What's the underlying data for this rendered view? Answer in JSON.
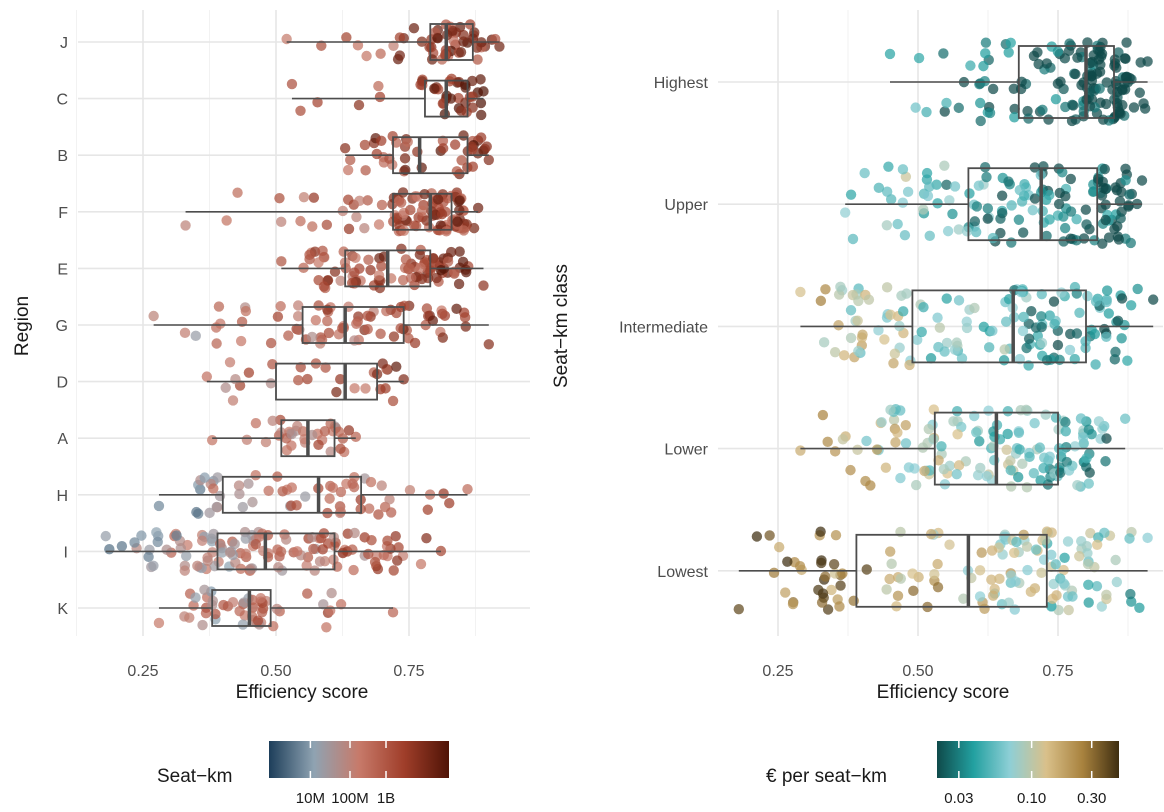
{
  "chart_data": [
    {
      "type": "boxplot",
      "orientation": "horizontal",
      "xlabel": "Efficiency score",
      "ylabel": "Region",
      "xlim": [
        0.16,
        0.93
      ],
      "xticks": [
        "0.25",
        "0.50",
        "0.75"
      ],
      "xtick_values": [
        0.25,
        0.5,
        0.75
      ],
      "grid": true,
      "jittered_points": true,
      "categories": [
        "J",
        "C",
        "B",
        "F",
        "E",
        "G",
        "D",
        "A",
        "H",
        "I",
        "K"
      ],
      "boxes": [
        {
          "category": "J",
          "whisker_low": 0.52,
          "q1": 0.79,
          "median": 0.82,
          "q3": 0.87,
          "whisker_high": 0.92,
          "n": 55,
          "color_bias": 0.62
        },
        {
          "category": "C",
          "whisker_low": 0.53,
          "q1": 0.78,
          "median": 0.82,
          "q3": 0.86,
          "whisker_high": 0.89,
          "n": 40,
          "color_bias": 0.72
        },
        {
          "category": "B",
          "whisker_low": 0.63,
          "q1": 0.72,
          "median": 0.77,
          "q3": 0.86,
          "whisker_high": 0.9,
          "n": 45,
          "color_bias": 0.68
        },
        {
          "category": "F",
          "whisker_low": 0.33,
          "q1": 0.72,
          "median": 0.79,
          "q3": 0.83,
          "whisker_high": 0.88,
          "n": 110,
          "color_bias": 0.6
        },
        {
          "category": "E",
          "whisker_low": 0.51,
          "q1": 0.63,
          "median": 0.71,
          "q3": 0.79,
          "whisker_high": 0.89,
          "n": 90,
          "color_bias": 0.64
        },
        {
          "category": "G",
          "whisker_low": 0.27,
          "q1": 0.55,
          "median": 0.63,
          "q3": 0.74,
          "whisker_high": 0.9,
          "n": 75,
          "color_bias": 0.6
        },
        {
          "category": "D",
          "whisker_low": 0.37,
          "q1": 0.5,
          "median": 0.63,
          "q3": 0.69,
          "whisker_high": 0.74,
          "n": 28,
          "color_bias": 0.66
        },
        {
          "category": "A",
          "whisker_low": 0.38,
          "q1": 0.51,
          "median": 0.56,
          "q3": 0.61,
          "whisker_high": 0.65,
          "n": 35,
          "color_bias": 0.55
        },
        {
          "category": "H",
          "whisker_low": 0.28,
          "q1": 0.4,
          "median": 0.58,
          "q3": 0.66,
          "whisker_high": 0.86,
          "n": 60,
          "color_bias": 0.5
        },
        {
          "category": "I",
          "whisker_low": 0.18,
          "q1": 0.39,
          "median": 0.48,
          "q3": 0.61,
          "whisker_high": 0.81,
          "n": 130,
          "color_bias": 0.55
        },
        {
          "category": "K",
          "whisker_low": 0.28,
          "q1": 0.38,
          "median": 0.45,
          "q3": 0.49,
          "whisker_high": 0.72,
          "n": 50,
          "color_bias": 0.58
        }
      ],
      "legend": {
        "title": "Seat−km",
        "type": "colorbar",
        "placement": "bottom",
        "labels": [
          "10M",
          "100M",
          "1B"
        ],
        "colors": [
          "#1d3e5a",
          "#8fa3b2",
          "#c77a6a",
          "#a03e2a",
          "#4f1306"
        ]
      }
    },
    {
      "type": "boxplot",
      "orientation": "horizontal",
      "xlabel": "Efficiency score",
      "ylabel": "Seat−km class",
      "xlim": [
        0.16,
        0.93
      ],
      "xticks": [
        "0.25",
        "0.50",
        "0.75"
      ],
      "xtick_values": [
        0.25,
        0.5,
        0.75
      ],
      "grid": true,
      "jittered_points": true,
      "categories": [
        "Highest",
        "Upper",
        "Intermediate",
        "Lower",
        "Lowest"
      ],
      "boxes": [
        {
          "category": "Highest",
          "whisker_low": 0.45,
          "q1": 0.68,
          "median": 0.8,
          "q3": 0.85,
          "whisker_high": 0.91,
          "n": 150,
          "color_bias": 0.15
        },
        {
          "category": "Upper",
          "whisker_low": 0.37,
          "q1": 0.59,
          "median": 0.72,
          "q3": 0.82,
          "whisker_high": 0.9,
          "n": 150,
          "color_bias": 0.27
        },
        {
          "category": "Intermediate",
          "whisker_low": 0.29,
          "q1": 0.49,
          "median": 0.67,
          "q3": 0.8,
          "whisker_high": 0.92,
          "n": 150,
          "color_bias": 0.38
        },
        {
          "category": "Lower",
          "whisker_low": 0.29,
          "q1": 0.53,
          "median": 0.64,
          "q3": 0.75,
          "whisker_high": 0.87,
          "n": 150,
          "color_bias": 0.45
        },
        {
          "category": "Lowest",
          "whisker_low": 0.18,
          "q1": 0.39,
          "median": 0.59,
          "q3": 0.73,
          "whisker_high": 0.91,
          "n": 150,
          "color_bias": 0.62
        }
      ],
      "legend": {
        "title": "€ per seat−km",
        "type": "colorbar",
        "placement": "bottom",
        "labels": [
          "0.03",
          "0.10",
          "0.30"
        ],
        "colors": [
          "#0f4a4a",
          "#22a0a0",
          "#8ecfd6",
          "#d9c08a",
          "#a8823e",
          "#3f2e10"
        ]
      }
    }
  ]
}
